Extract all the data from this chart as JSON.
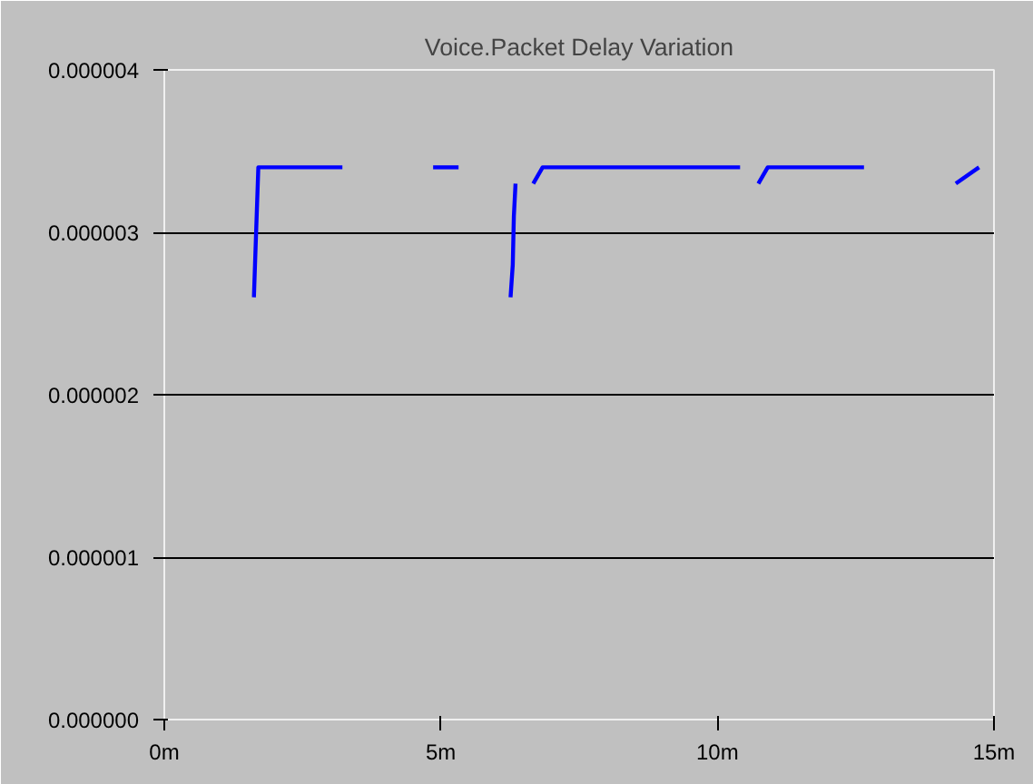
{
  "chart_data": {
    "type": "line",
    "title": "Voice.Packet Delay Variation",
    "series": [
      {
        "color": "#0000ff",
        "x": [
          1.62,
          1.64,
          1.67,
          1.7,
          3.22
        ],
        "values": [
          2.6e-06,
          2.8e-06,
          3.1e-06,
          3.4e-06,
          3.4e-06
        ]
      },
      {
        "color": "#0000ff",
        "x": [
          4.86,
          5.32
        ],
        "values": [
          3.4e-06,
          3.4e-06
        ]
      },
      {
        "color": "#0000ff",
        "x": [
          6.26,
          6.3,
          6.32,
          6.35
        ],
        "values": [
          2.6e-06,
          2.8e-06,
          3.1e-06,
          3.3e-06
        ]
      },
      {
        "color": "#0000ff",
        "x": [
          6.67,
          6.84,
          10.41
        ],
        "values": [
          3.3e-06,
          3.4e-06,
          3.4e-06
        ]
      },
      {
        "color": "#0000ff",
        "x": [
          10.74,
          10.91,
          12.65
        ],
        "values": [
          3.3e-06,
          3.4e-06,
          3.4e-06
        ]
      },
      {
        "color": "#0000ff",
        "x": [
          14.31,
          14.73
        ],
        "values": [
          3.3e-06,
          3.4e-06
        ]
      }
    ],
    "xlim": [
      0,
      15
    ],
    "xticks": [
      {
        "value": 0,
        "label": "0m"
      },
      {
        "value": 5,
        "label": "5m"
      },
      {
        "value": 10,
        "label": "10m"
      },
      {
        "value": 15,
        "label": "15m"
      }
    ],
    "ylim": [
      0,
      4e-06
    ],
    "yticks": [
      {
        "value": 0,
        "label": "0.000000"
      },
      {
        "value": 1e-06,
        "label": "0.000001"
      },
      {
        "value": 2e-06,
        "label": "0.000002"
      },
      {
        "value": 3e-06,
        "label": "0.000003"
      },
      {
        "value": 4e-06,
        "label": "0.000004"
      }
    ],
    "grid": "y",
    "line_style": "solid"
  }
}
